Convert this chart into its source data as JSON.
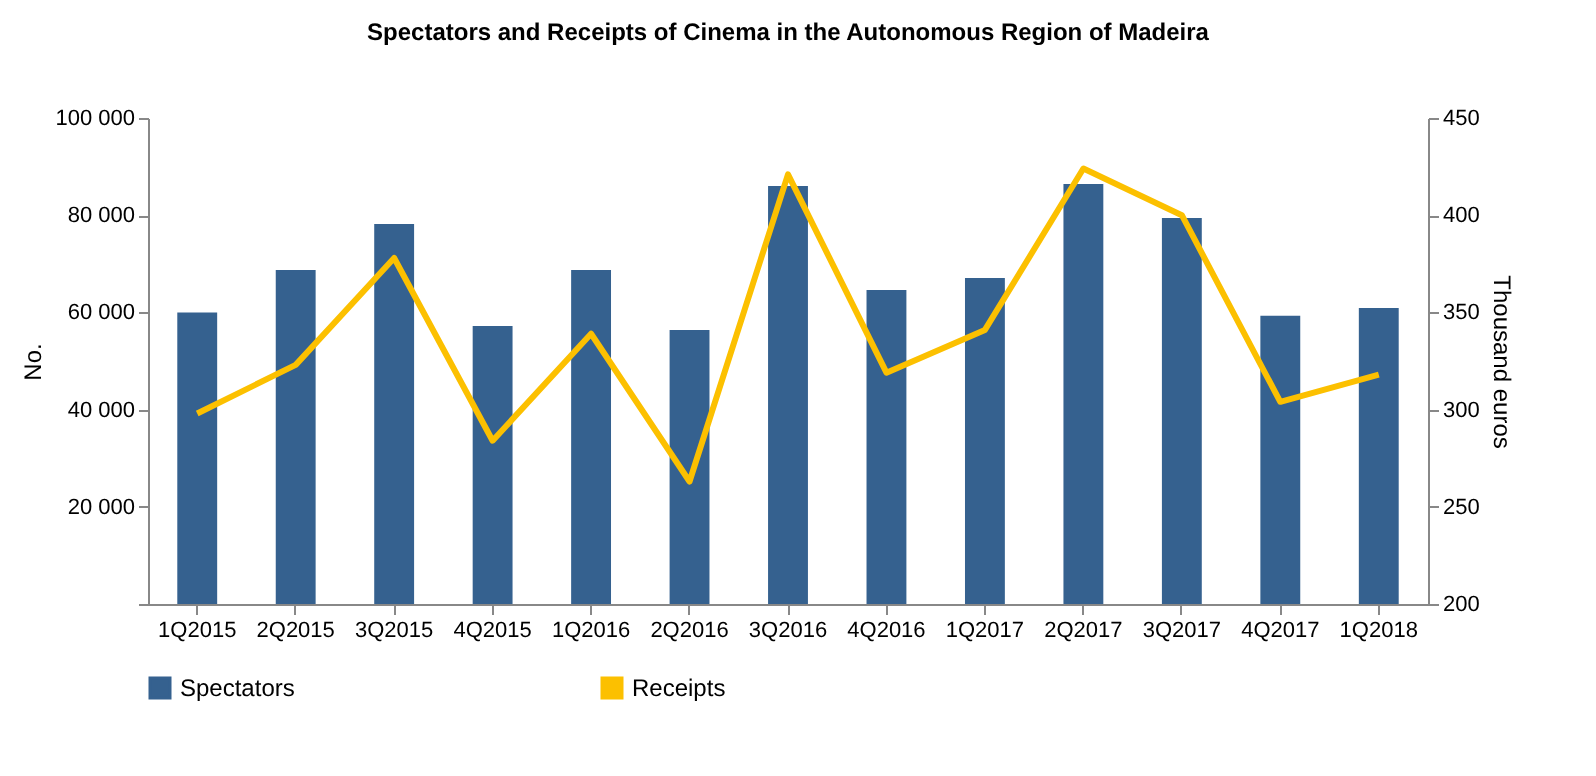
{
  "chart_data": {
    "type": "bar",
    "title": "Spectators and Receipts of Cinema in the Autonomous  Region of Madeira",
    "ylabel": "No.",
    "y2label": "Thousand euros",
    "categories": [
      "1Q2015",
      "2Q2015",
      "3Q2015",
      "4Q2015",
      "1Q2016",
      "2Q2016",
      "3Q2016",
      "4Q2016",
      "1Q2017",
      "2Q2017",
      "3Q2017",
      "4Q2017",
      "1Q2018"
    ],
    "series": [
      {
        "name": "Spectators",
        "color": "#35618f",
        "values": [
          60000,
          68700,
          78200,
          57200,
          68700,
          56400,
          86000,
          64600,
          67100,
          86400,
          79400,
          59300,
          60900
        ]
      },
      {
        "name": "Receipts",
        "type": "line",
        "axis": "y2",
        "color": "#fcc000",
        "values": [
          298,
          323,
          378,
          284,
          339,
          263,
          421,
          319,
          341,
          424,
          400,
          304,
          318
        ]
      }
    ],
    "ylim": [
      0,
      100000
    ],
    "yticks": [
      {
        "value": 0,
        "label": null
      },
      {
        "value": 20000,
        "label": "20 000"
      },
      {
        "value": 40000,
        "label": "40 000"
      },
      {
        "value": 60000,
        "label": "60 000"
      },
      {
        "value": 80000,
        "label": "80 000"
      },
      {
        "value": 100000,
        "label": "100 000"
      }
    ],
    "y2lim": [
      200,
      450
    ],
    "y2ticks": [
      200,
      250,
      300,
      350,
      400,
      450
    ],
    "grid": false,
    "legend": "bottom"
  }
}
